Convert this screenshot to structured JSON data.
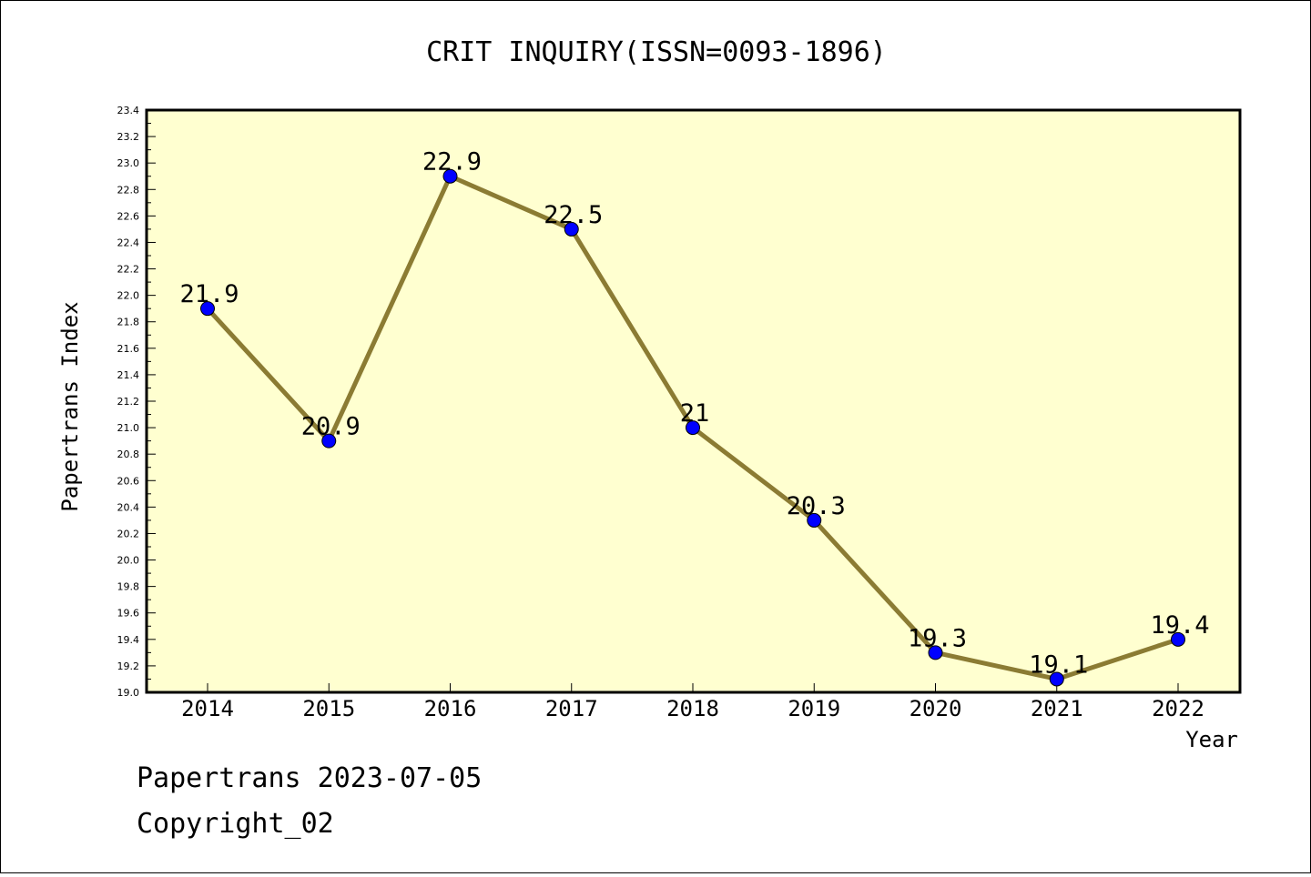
{
  "chart_data": {
    "type": "line",
    "title": "CRIT INQUIRY(ISSN=0093-1896)",
    "xlabel": "Year",
    "ylabel": "Papertrans Index",
    "categories": [
      "2014",
      "2015",
      "2016",
      "2017",
      "2018",
      "2019",
      "2020",
      "2021",
      "2022"
    ],
    "series": [
      {
        "values": [
          21.9,
          20.9,
          22.9,
          22.5,
          21.0,
          20.3,
          19.3,
          19.1,
          19.4
        ],
        "data_labels": [
          "21.9",
          "20.9",
          "22.9",
          "22.5",
          "21",
          "20.3",
          "19.3",
          "19.1",
          "19.4"
        ],
        "line_color": "#8B7B33",
        "marker_color": "#0000FF"
      }
    ],
    "ylim": [
      19.0,
      23.4
    ],
    "yticks": [
      "19.0",
      "19.2",
      "19.4",
      "19.6",
      "19.8",
      "20.0",
      "20.2",
      "20.4",
      "20.6",
      "20.8",
      "21.0",
      "21.2",
      "21.4",
      "21.6",
      "21.8",
      "22.0",
      "22.2",
      "22.4",
      "22.6",
      "22.8",
      "23.0",
      "23.2",
      "23.4"
    ],
    "plot_background": "#FFFFD0",
    "grid": false,
    "legend": "none"
  },
  "footer": {
    "line1": "Papertrans 2023-07-05",
    "line2": "Copyright_02"
  }
}
